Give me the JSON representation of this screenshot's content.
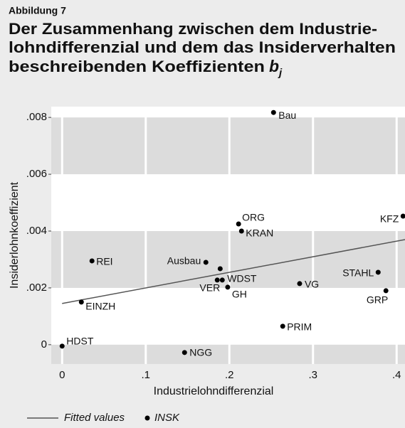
{
  "chart_data": {
    "type": "scatter",
    "label": "Abbildung 7",
    "title_lines": [
      "Der Zusammenhang zwischen dem Industrie-",
      "lohndifferenzial und dem das Insiderverhalten",
      "beschreibenden Koeffizienten"
    ],
    "title_symbol": "b",
    "title_subscript": "j",
    "xlabel": "Industrielohndifferenzial",
    "ylabel": "Insiderlohnkoeffizient",
    "xlim": [
      -0.013,
      0.41
    ],
    "ylim": [
      -0.00068,
      0.00838
    ],
    "xticks": [
      0,
      {
        "value": 0.1,
        "label": ".1"
      },
      {
        "value": 0.2,
        "label": ".2"
      },
      {
        "value": 0.3,
        "label": ".3"
      },
      {
        "value": 0.4,
        "label": ".4"
      }
    ],
    "yticks": [
      0,
      {
        "value": 0.002,
        "label": ".002"
      },
      {
        "value": 0.004,
        "label": ".004"
      },
      {
        "value": 0.006,
        "label": ".006"
      },
      {
        "value": 0.008,
        "label": ".008"
      }
    ],
    "series": [
      {
        "name": "Fitted values",
        "color": "#555555",
        "x": [
          0,
          0.41
        ],
        "values": [
          0.00145,
          0.0037
        ]
      },
      {
        "name": "INSK",
        "color": "#000000",
        "labels": [
          "HDST",
          "EINZH",
          "REI",
          "NGG",
          "Ausbau",
          null,
          "VER",
          "WDST",
          "GH",
          "ORG",
          "KRAN",
          "Bau",
          "PRIM",
          "VG",
          "STAHL",
          "GRP",
          "KFZ"
        ],
        "x": [
          0,
          0.023,
          0.0357,
          0.1464,
          0.1719,
          0.189,
          0.1855,
          0.1915,
          0.198,
          0.211,
          0.2145,
          0.2528,
          0.2638,
          0.284,
          0.3779,
          0.3872,
          0.4077
        ],
        "values": [
          -5e-05,
          0.0015,
          0.00295,
          -0.000275,
          0.0029,
          0.002675,
          0.002275,
          0.002275,
          0.002025,
          0.00425,
          0.004,
          0.008175,
          0.00065,
          0.00215,
          0.00255,
          0.0019,
          0.004525
        ]
      }
    ]
  }
}
